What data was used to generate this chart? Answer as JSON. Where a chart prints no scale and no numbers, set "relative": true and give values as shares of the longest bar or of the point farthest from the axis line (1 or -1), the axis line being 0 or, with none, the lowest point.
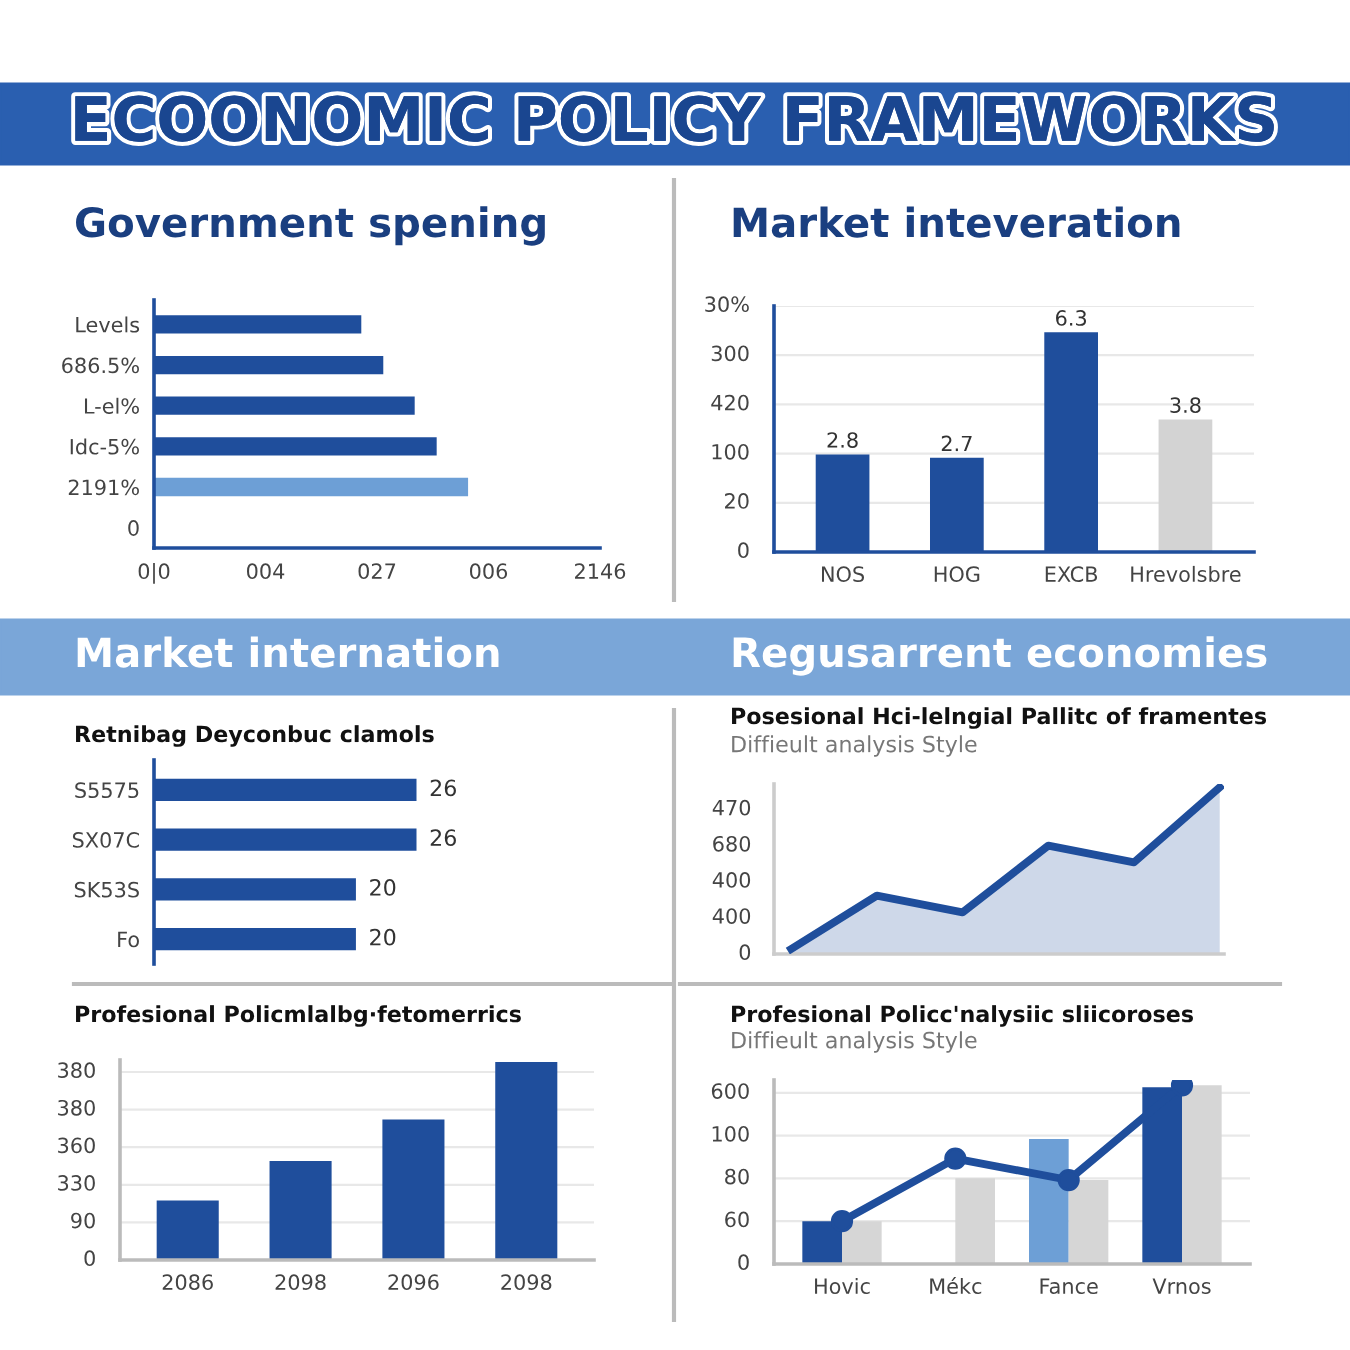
{
  "chart_data": [
    {
      "type": "other",
      "title": "ECOONOMIC POLICY FRAMEWORKS"
    },
    {
      "type": "bar",
      "orientation": "horizontal",
      "relative": true,
      "title": "Government spening",
      "categories": [
        "Levels",
        "686.5%",
        "L-el%",
        "Idc-5%",
        "2191%",
        "0"
      ],
      "values": [
        0.66,
        0.73,
        0.83,
        0.9,
        1.0,
        null
      ],
      "colors": [
        "#1f4e9c",
        "#1f4e9c",
        "#1f4e9c",
        "#1f4e9c",
        "#6d9fd6",
        "#1f4e9c"
      ],
      "annotations": [
        "0|0",
        "004",
        "027",
        "006",
        "2146"
      ]
    },
    {
      "type": "bar",
      "title": "Market inteveration",
      "categories": [
        "NOS",
        "HOG",
        "EXCB",
        "Hrevolsbre"
      ],
      "values": [
        2.8,
        2.7,
        6.3,
        3.8
      ],
      "colors": [
        "#1f4e9c",
        "#1f4e9c",
        "#1f4e9c",
        "#d3d3d3"
      ],
      "data_labels": true,
      "tick_labels": "x",
      "annotations": [
        "0",
        "20",
        "100",
        "420",
        "300",
        "30%"
      ],
      "grid": "y"
    },
    {
      "type": "bar",
      "orientation": "horizontal",
      "title": "Market internation",
      "subtitle": "Retnibag Deyconbuc clamols",
      "categories": [
        "S5575",
        "SX07C",
        "SK53S",
        "Fo"
      ],
      "values": [
        26,
        26,
        20,
        20
      ],
      "color": "#1f4e9c",
      "data_labels": true,
      "tick_labels": "y"
    },
    {
      "type": "area",
      "relative": true,
      "title": "Regusarrent economies",
      "subtitle": "Posesional Hci-lelngial Pallitc of framentes",
      "annotations": [
        "Diffieult analysis Style",
        "0",
        "400",
        "400",
        "680",
        "470"
      ],
      "categories": [
        null,
        null,
        null,
        null,
        null,
        null
      ],
      "series": [
        {
          "color": "#1f4e9c",
          "values": [
            0.03,
            0.35,
            0.25,
            0.65,
            0.55,
            1.0
          ]
        }
      ]
    },
    {
      "type": "bar",
      "relative": true,
      "title": "Profesional Policmlalbg·fetomerrics",
      "categories": [
        "2086",
        "2098",
        "2096",
        "2098"
      ],
      "values": [
        0.3,
        0.5,
        0.71,
        1.0
      ],
      "color": "#1f4e9c",
      "annotations": [
        "0",
        "90",
        "330",
        "360",
        "380",
        "380"
      ],
      "grid": "y"
    },
    {
      "type": "bar",
      "relative": true,
      "title": "Profesional Policc'nalysiic sliicoroses",
      "subtitle": "Diffieult analysis Style",
      "categories": [
        "Hovic",
        "Mékc",
        "Fance",
        "Vrnos"
      ],
      "series": [
        {
          "colors": [
            "#1f4e9c",
            "#1f4e9c",
            "#6d9fd6",
            "#1f4e9c"
          ],
          "values": [
            0.24,
            null,
            0.7,
            0.99
          ]
        },
        {
          "color": "#d6d6d6",
          "values": [
            0.24,
            0.48,
            0.47,
            1.0
          ]
        },
        {
          "type": "line",
          "color": "#1f4e9c",
          "values": [
            0.24,
            0.59,
            0.47,
            1.0
          ]
        }
      ],
      "marker": "circle",
      "annotations": [
        "0",
        "60",
        "80",
        "100",
        "600"
      ],
      "grid": "y"
    }
  ]
}
